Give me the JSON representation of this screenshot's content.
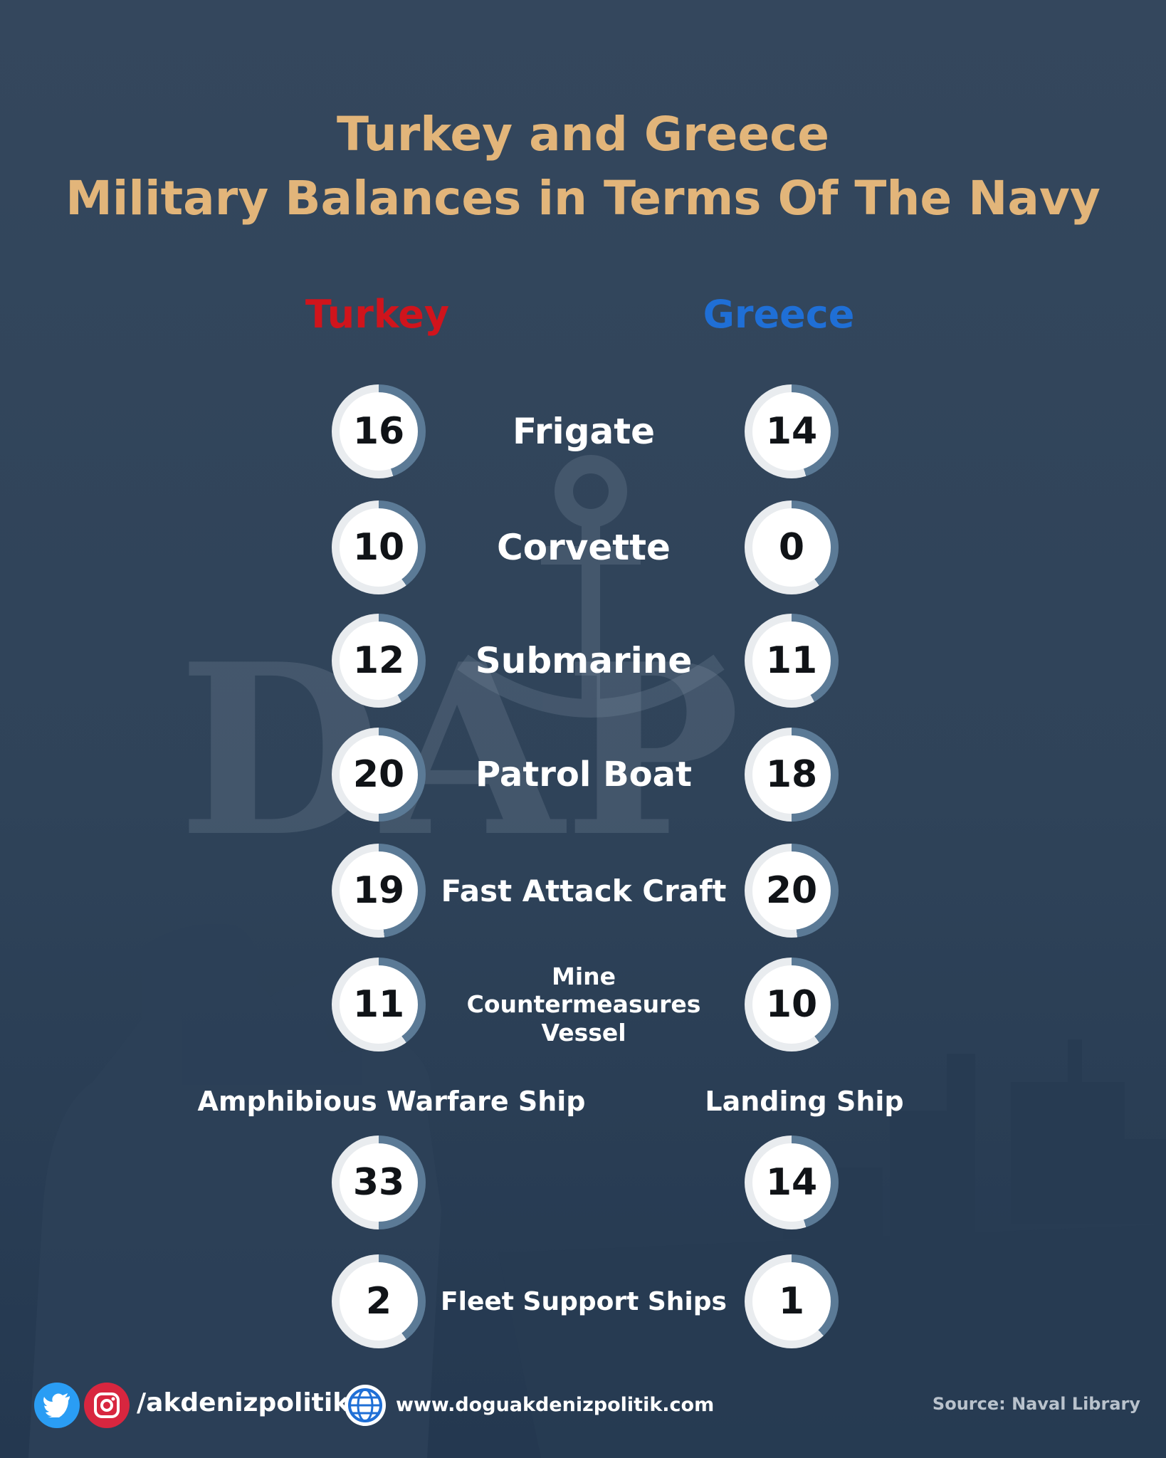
{
  "title": {
    "line1": "Turkey and Greece",
    "line2": "Military Balances in Terms Of The Navy"
  },
  "countries": {
    "left": "Turkey",
    "right": "Greece"
  },
  "colors": {
    "title": "#e2b57a",
    "turkey": "#d0141c",
    "greece": "#1f6fd6",
    "ring_track": "#e9ecef",
    "ring_fill": "#5b7a96",
    "background": "#34475d"
  },
  "rows": [
    {
      "label": "Frigate",
      "turkey": "16",
      "greece": "14"
    },
    {
      "label": "Corvette",
      "turkey": "10",
      "greece": "0"
    },
    {
      "label": "Submarine",
      "turkey": "12",
      "greece": "11"
    },
    {
      "label": "Patrol Boat",
      "turkey": "20",
      "greece": "18"
    },
    {
      "label": "Fast Attack Craft",
      "turkey": "19",
      "greece": "20"
    },
    {
      "label": "Mine Countermeasures Vessel",
      "turkey": "11",
      "greece": "10"
    }
  ],
  "split_row": {
    "left_label": "Amphibious Warfare Ship",
    "right_label": "Landing Ship",
    "turkey": "33",
    "greece": "14"
  },
  "last_row": {
    "label": "Fleet Support Ships",
    "turkey": "2",
    "greece": "1"
  },
  "watermark": {
    "text": "DAP",
    "icon": "anchor-icon"
  },
  "footer": {
    "icons": [
      "twitter-icon",
      "instagram-icon",
      "globe-icon"
    ],
    "handle": "/akdenizpolitik",
    "website": "www.doguakdenizpolitik.com",
    "source": "Source: Naval Library"
  }
}
